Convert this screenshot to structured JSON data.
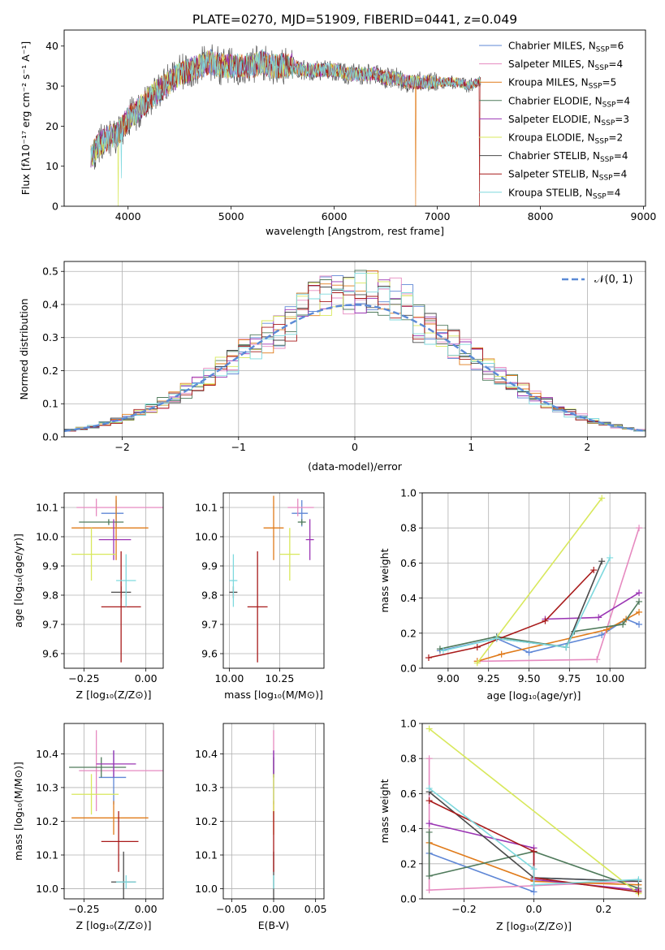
{
  "figure_title": "PLATE=0270, MJD=51909, FIBERID=0441, z=0.049",
  "series_colors": [
    "#5f87d6",
    "#e68ac0",
    "#e07b1a",
    "#4f7a5b",
    "#9b36b4",
    "#d8e85c",
    "#4a4a4a",
    "#a81a1a",
    "#7ed9de"
  ],
  "chart_data": [
    {
      "id": "spectrum",
      "type": "line",
      "xlabel": "wavelength [Angstrom, rest frame]",
      "ylabel": "Flux [fλ10⁻¹⁷ erg cm⁻² s⁻¹ A⁻¹]",
      "xlim": [
        3380,
        9020
      ],
      "ylim": [
        0,
        44
      ],
      "xticks": [
        "4000",
        "5000",
        "6000",
        "7000",
        "8000",
        "9000"
      ],
      "yticks": [
        "0",
        "10",
        "20",
        "30",
        "40"
      ],
      "grid": false,
      "legend_position": "upper right",
      "legend": [
        {
          "name": "Chabrier MILES",
          "nssp": "6"
        },
        {
          "name": "Salpeter MILES",
          "nssp": "4"
        },
        {
          "name": "Kroupa MILES",
          "nssp": "5"
        },
        {
          "name": "Chabrier ELODIE",
          "nssp": "4"
        },
        {
          "name": "Salpeter ELODIE",
          "nssp": "3"
        },
        {
          "name": "Kroupa ELODIE",
          "nssp": "2"
        },
        {
          "name": "Chabrier STELIB",
          "nssp": "4"
        },
        {
          "name": "Salpeter STELIB",
          "nssp": "4"
        },
        {
          "name": "Kroupa STELIB",
          "nssp": "4"
        }
      ],
      "nssp_label": "N",
      "nssp_sub": "SSP",
      "envelope": {
        "x": [
          3640,
          3700,
          3800,
          3900,
          3950,
          4000,
          4100,
          4200,
          4300,
          4400,
          4500,
          4600,
          4700,
          4800,
          4900,
          5000,
          5100,
          5200,
          5300,
          5400,
          5500,
          5600,
          5700,
          5800,
          5900,
          6000,
          6100,
          6200,
          6300,
          6400,
          6500,
          6600,
          6700,
          6800,
          6900,
          7000,
          7100,
          7200,
          7300,
          7400,
          7420
        ],
        "y": [
          12,
          15,
          17,
          18,
          20,
          22,
          24,
          27,
          29,
          31,
          33,
          34,
          35,
          36,
          35,
          35,
          35,
          35,
          36,
          35,
          35,
          35,
          34,
          34,
          34,
          34,
          33,
          33,
          33,
          33,
          32,
          32,
          31,
          31,
          31,
          31,
          31,
          31,
          30,
          31,
          31
        ]
      },
      "dips": [
        {
          "series": "Kroupa ELODIE",
          "x": 3905,
          "y": 0
        },
        {
          "series": "Kroupa STELIB",
          "x": 3935,
          "y": 7
        },
        {
          "series": "Kroupa MILES",
          "x": 6790,
          "y": 0
        },
        {
          "series": "Salpeter STELIB",
          "x": 7410,
          "y": 0
        }
      ]
    },
    {
      "id": "residuals",
      "type": "histogram",
      "xlabel": "(data-model)/error",
      "ylabel": "Normed distribution",
      "xlim": [
        -2.5,
        2.5
      ],
      "ylim": [
        0,
        0.53
      ],
      "xticks": [
        "−2",
        "−1",
        "0",
        "1",
        "2"
      ],
      "yticks": [
        "0.0",
        "0.1",
        "0.2",
        "0.3",
        "0.4",
        "0.5"
      ],
      "grid": true,
      "legend_position": "upper right",
      "reference_curve_label": "𝒩(0, 1)",
      "reference_curve": "standard normal, peak 0.399 at 0",
      "bin_width": 0.1
    },
    {
      "id": "age_vs_Z",
      "type": "errorbar",
      "xlabel": "Z [log₁₀(Z/Z⊙)]",
      "ylabel": "age [log₁₀(age/yr)]",
      "xlim": [
        -0.33,
        0.07
      ],
      "ylim": [
        9.55,
        10.15
      ],
      "xticks": [
        "−0.25",
        "0.00"
      ],
      "yticks": [
        "9.6",
        "9.7",
        "9.8",
        "9.9",
        "10.0",
        "10.1"
      ],
      "grid": true,
      "points": [
        {
          "x": -0.12,
          "y": 10.08,
          "xerr": [
            0.06,
            0.03
          ],
          "yerr": 0.045
        },
        {
          "x": -0.2,
          "y": 10.1,
          "xerr": [
            0.08,
            0.35
          ],
          "yerr": 0.03
        },
        {
          "x": -0.12,
          "y": 10.03,
          "xerr": [
            0.18,
            0.13
          ],
          "yerr": 0.11
        },
        {
          "x": -0.15,
          "y": 10.05,
          "xerr": [
            0.12,
            0.06
          ],
          "yerr": 0.01
        },
        {
          "x": -0.13,
          "y": 9.99,
          "xerr": [
            0.06,
            0.07
          ],
          "yerr": 0.07
        },
        {
          "x": -0.22,
          "y": 9.94,
          "xerr": [
            0.08,
            0.1
          ],
          "yerr": 0.09
        },
        {
          "x": -0.1,
          "y": 9.81,
          "xerr": [
            0.04,
            0.04
          ],
          "yerr": 0.02
        },
        {
          "x": -0.1,
          "y": 9.76,
          "xerr": [
            0.08,
            0.08
          ],
          "yerr": 0.19
        },
        {
          "x": -0.08,
          "y": 9.85,
          "xerr": [
            0.04,
            0.04
          ],
          "yerr": 0.09
        }
      ]
    },
    {
      "id": "age_vs_mass",
      "type": "errorbar",
      "xlabel": "mass [log₁₀(M/M⊙)]",
      "ylabel": "",
      "xlim": [
        9.97,
        10.47
      ],
      "ylim": [
        9.55,
        10.15
      ],
      "xticks": [
        "10.00",
        "10.25"
      ],
      "yticks": [
        "9.6",
        "9.7",
        "9.8",
        "9.9",
        "10.0",
        "10.1"
      ],
      "grid": true,
      "points": [
        {
          "x": 10.36,
          "y": 10.08,
          "xerr": [
            0.05,
            0.03
          ],
          "yerr": 0.045
        },
        {
          "x": 10.34,
          "y": 10.1,
          "xerr": [
            0.05,
            0.08
          ],
          "yerr": 0.03
        },
        {
          "x": 10.22,
          "y": 10.03,
          "xerr": [
            0.05,
            0.05
          ],
          "yerr": 0.11
        },
        {
          "x": 10.36,
          "y": 10.05,
          "xerr": [
            0.02,
            0.02
          ],
          "yerr": 0.01
        },
        {
          "x": 10.4,
          "y": 9.99,
          "xerr": [
            0.02,
            0.02
          ],
          "yerr": 0.07
        },
        {
          "x": 10.3,
          "y": 9.94,
          "xerr": [
            0.05,
            0.05
          ],
          "yerr": 0.09
        },
        {
          "x": 10.02,
          "y": 9.81,
          "xerr": [
            0.02,
            0.02
          ],
          "yerr": 0.02
        },
        {
          "x": 10.14,
          "y": 9.76,
          "xerr": [
            0.05,
            0.05
          ],
          "yerr": 0.19
        },
        {
          "x": 10.02,
          "y": 9.85,
          "xerr": [
            0.02,
            0.02
          ],
          "yerr": 0.09
        }
      ]
    },
    {
      "id": "weight_vs_age",
      "type": "line",
      "xlabel": "age  [log₁₀(age/yr)]",
      "ylabel": "mass weight",
      "xlim": [
        8.84,
        10.22
      ],
      "ylim": [
        0,
        1
      ],
      "xticks": [
        "9.00",
        "9.25",
        "9.50",
        "9.75",
        "10.00"
      ],
      "yticks": [
        "0.0",
        "0.2",
        "0.4",
        "0.6",
        "0.8",
        "1.0"
      ],
      "grid": true,
      "series": [
        {
          "x": [
            8.95,
            9.3,
            9.5,
            9.95,
            10.1,
            10.18
          ],
          "y": [
            0.1,
            0.17,
            0.09,
            0.19,
            0.28,
            0.25
          ]
        },
        {
          "x": [
            9.18,
            9.92,
            10.18
          ],
          "y": [
            0.04,
            0.05,
            0.8
          ]
        },
        {
          "x": [
            9.18,
            9.33,
            9.98,
            10.1,
            10.18
          ],
          "y": [
            0.04,
            0.08,
            0.22,
            0.28,
            0.32
          ]
        },
        {
          "x": [
            8.95,
            9.3,
            9.73,
            9.78,
            10.08,
            10.18
          ],
          "y": [
            0.11,
            0.18,
            0.12,
            0.21,
            0.25,
            0.38
          ]
        },
        {
          "x": [
            9.6,
            9.93,
            10.18
          ],
          "y": [
            0.28,
            0.29,
            0.43
          ]
        },
        {
          "x": [
            9.18,
            9.95
          ],
          "y": [
            0.03,
            0.97
          ]
        },
        {
          "x": [
            9.3,
            9.73,
            9.95
          ],
          "y": [
            0.17,
            0.12,
            0.61
          ]
        },
        {
          "x": [
            8.88,
            9.18,
            9.6,
            9.9
          ],
          "y": [
            0.06,
            0.12,
            0.27,
            0.56
          ]
        },
        {
          "x": [
            8.97,
            9.3,
            9.73,
            10.0
          ],
          "y": [
            0.1,
            0.17,
            0.12,
            0.63
          ]
        }
      ]
    },
    {
      "id": "mass_vs_Z",
      "type": "errorbar",
      "xlabel": "Z [log₁₀(Z/Z⊙)]",
      "ylabel": "mass [log₁₀(M/M⊙)]",
      "xlim": [
        -0.33,
        0.07
      ],
      "ylim": [
        9.97,
        10.49
      ],
      "xticks": [
        "−0.25",
        "0.00"
      ],
      "yticks": [
        "10.0",
        "10.1",
        "10.2",
        "10.3",
        "10.4"
      ],
      "grid": true,
      "points": [
        {
          "x": -0.13,
          "y": 10.33,
          "xerr": [
            0.06,
            0.05
          ],
          "yerr": 0.08
        },
        {
          "x": -0.2,
          "y": 10.35,
          "xerr": [
            0.07,
            0.4
          ],
          "yerr": 0.12
        },
        {
          "x": -0.13,
          "y": 10.21,
          "xerr": [
            0.17,
            0.14
          ],
          "yerr": 0.05
        },
        {
          "x": -0.18,
          "y": 10.36,
          "xerr": [
            0.13,
            0.1
          ],
          "yerr": 0.03
        },
        {
          "x": -0.13,
          "y": 10.37,
          "xerr": [
            0.07,
            0.09
          ],
          "yerr": 0.04
        },
        {
          "x": -0.22,
          "y": 10.28,
          "xerr": [
            0.08,
            0.11
          ],
          "yerr": 0.06
        },
        {
          "x": -0.09,
          "y": 10.02,
          "xerr": [
            0.05,
            0.05
          ],
          "yerr": 0.09
        },
        {
          "x": -0.11,
          "y": 10.14,
          "xerr": [
            0.07,
            0.08
          ],
          "yerr": 0.09
        },
        {
          "x": -0.08,
          "y": 10.02,
          "xerr": [
            0.04,
            0.04
          ],
          "yerr": 0.02
        }
      ]
    },
    {
      "id": "mass_vs_EBV",
      "type": "errorbar",
      "xlabel": "E(B-V)",
      "ylabel": "",
      "xlim": [
        -0.06,
        0.06
      ],
      "ylim": [
        9.97,
        10.49
      ],
      "xticks": [
        "−0.05",
        "0.00",
        "0.05"
      ],
      "yticks": [
        "10.0",
        "10.1",
        "10.2",
        "10.3",
        "10.4"
      ],
      "grid": true,
      "points": [
        {
          "x": 0,
          "y": 10.33,
          "xerr": [
            0,
            0
          ],
          "yerr": 0.08
        },
        {
          "x": 0,
          "y": 10.35,
          "xerr": [
            0,
            0
          ],
          "yerr": 0.12
        },
        {
          "x": 0,
          "y": 10.21,
          "xerr": [
            0,
            0
          ],
          "yerr": 0.05
        },
        {
          "x": 0,
          "y": 10.36,
          "xerr": [
            0,
            0
          ],
          "yerr": 0.03
        },
        {
          "x": 0,
          "y": 10.37,
          "xerr": [
            0,
            0
          ],
          "yerr": 0.04
        },
        {
          "x": 0,
          "y": 10.28,
          "xerr": [
            0,
            0
          ],
          "yerr": 0.06
        },
        {
          "x": 0,
          "y": 10.02,
          "xerr": [
            0,
            0
          ],
          "yerr": 0.09
        },
        {
          "x": 0,
          "y": 10.14,
          "xerr": [
            0,
            0
          ],
          "yerr": 0.09
        },
        {
          "x": 0,
          "y": 10.02,
          "xerr": [
            0,
            0
          ],
          "yerr": 0.02
        }
      ]
    },
    {
      "id": "weight_vs_Z",
      "type": "line",
      "xlabel": "Z [log₁₀(Z/Z⊙)]",
      "ylabel": "mass weight",
      "xlim": [
        -0.32,
        0.32
      ],
      "ylim": [
        0,
        1
      ],
      "xticks": [
        "−0.2",
        "0.0",
        "0.2"
      ],
      "yticks": [
        "0.0",
        "0.2",
        "0.4",
        "0.6",
        "0.8",
        "1.0"
      ],
      "grid": true,
      "series": [
        {
          "x": [
            -0.3,
            0.0,
            0.0,
            0.3
          ],
          "y": [
            0.26,
            0.04,
            0.12,
            0.1
          ]
        },
        {
          "x": [
            -0.3,
            -0.3,
            0.3
          ],
          "y": [
            0.8,
            0.05,
            0.1
          ]
        },
        {
          "x": [
            -0.3,
            0.0,
            0.3
          ],
          "y": [
            0.32,
            0.1,
            0.08
          ]
        },
        {
          "x": [
            -0.3,
            -0.3,
            0.0,
            0.3
          ],
          "y": [
            0.38,
            0.13,
            0.27,
            0.06
          ]
        },
        {
          "x": [
            -0.3,
            0.0,
            0.0,
            0.3
          ],
          "y": [
            0.43,
            0.29,
            0.11,
            0.05
          ]
        },
        {
          "x": [
            -0.3,
            0.3
          ],
          "y": [
            0.97,
            0.03
          ]
        },
        {
          "x": [
            -0.3,
            0.0,
            0.3
          ],
          "y": [
            0.61,
            0.12,
            0.1
          ]
        },
        {
          "x": [
            -0.3,
            0.0,
            0.0,
            0.3
          ],
          "y": [
            0.56,
            0.27,
            0.12,
            0.04
          ]
        },
        {
          "x": [
            -0.3,
            0.0,
            0.0,
            0.3
          ],
          "y": [
            0.63,
            0.17,
            0.08,
            0.11
          ]
        }
      ]
    }
  ]
}
